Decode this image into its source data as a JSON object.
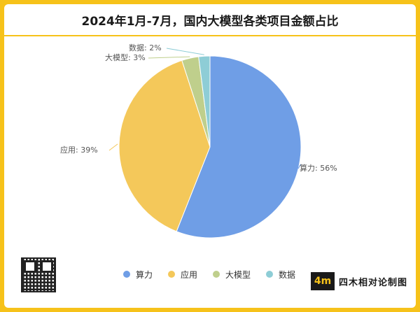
{
  "title": "2024年1月-7月，国内大模型各类项目金额占比",
  "brand": {
    "logo_text": "4m",
    "name": "四木相对论制图"
  },
  "chart_data": {
    "type": "pie",
    "title": "2024年1月-7月，国内大模型各类项目金额占比",
    "labels": [
      "算力",
      "应用",
      "大模型",
      "数据"
    ],
    "values": [
      56,
      39,
      3,
      2
    ],
    "unit": "%",
    "colors": [
      "#6f9ee6",
      "#f4c85a",
      "#bfcf8c",
      "#8ecdd6"
    ],
    "data_labels": [
      "算力: 56%",
      "应用: 39%",
      "大模型: 3%",
      "数据: 2%"
    ],
    "legend_position": "bottom"
  }
}
